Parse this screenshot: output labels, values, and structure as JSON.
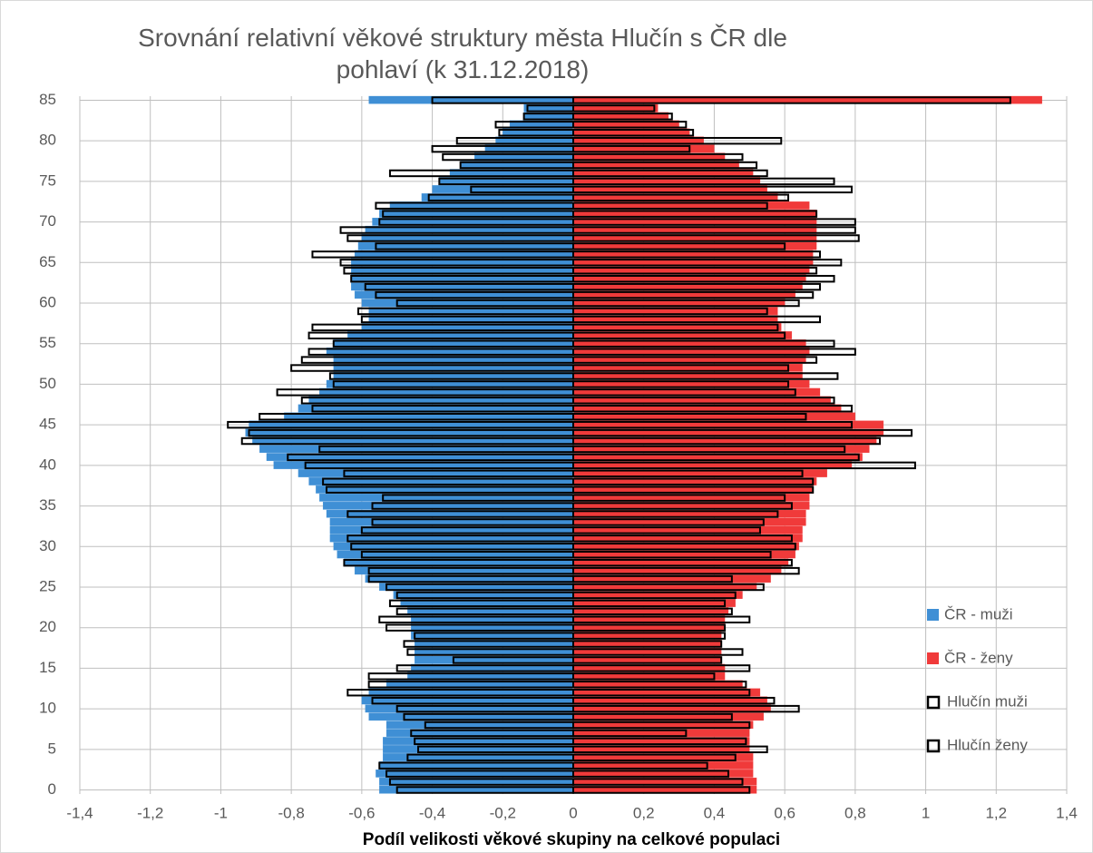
{
  "chart_data": {
    "type": "bar",
    "orientation": "horizontal",
    "title": "Srovnání relativní věkové struktury města Hlučín s ČR dle pohlaví (k 31.12.2018)",
    "xlabel": "Podíl velikosti věkové skupiny na celkové populaci",
    "categories": [
      0,
      null,
      null,
      null,
      null,
      5,
      null,
      null,
      null,
      null,
      10,
      null,
      null,
      null,
      null,
      15,
      null,
      null,
      null,
      null,
      20,
      null,
      null,
      null,
      null,
      25,
      null,
      null,
      null,
      null,
      30,
      null,
      null,
      null,
      null,
      35,
      null,
      null,
      null,
      null,
      40,
      null,
      null,
      null,
      null,
      45,
      null,
      null,
      null,
      null,
      50,
      null,
      null,
      null,
      null,
      55,
      null,
      null,
      null,
      null,
      60,
      null,
      null,
      null,
      null,
      65,
      null,
      null,
      null,
      null,
      70,
      null,
      null,
      null,
      null,
      75,
      null,
      null,
      null,
      null,
      80,
      null,
      null,
      null,
      null,
      85
    ],
    "xlim": [
      -1.4,
      1.4
    ],
    "xticks": [
      {
        "value": -1.4,
        "label": "-1,4"
      },
      {
        "value": -1.2,
        "label": "-1,2"
      },
      -1,
      {
        "value": -0.8,
        "label": "-0,8"
      },
      {
        "value": -0.6,
        "label": "-0,6"
      },
      {
        "value": -0.4,
        "label": "-0,4"
      },
      {
        "value": -0.2,
        "label": "-0,2"
      },
      0,
      {
        "value": 0.2,
        "label": "0,2"
      },
      {
        "value": 0.4,
        "label": "0,4"
      },
      {
        "value": 0.6,
        "label": "0,6"
      },
      {
        "value": 0.8,
        "label": "0,8"
      },
      1,
      {
        "value": 1.2,
        "label": "1,2"
      },
      {
        "value": 1.4,
        "label": "1,4"
      }
    ],
    "grid": true,
    "legend": "right",
    "series": [
      {
        "name": "ČR - muži",
        "color": "#3f8fd5",
        "outline": false,
        "values": [
          -0.55,
          -0.55,
          -0.56,
          -0.55,
          -0.54,
          -0.54,
          -0.54,
          -0.53,
          -0.53,
          -0.58,
          -0.59,
          -0.6,
          -0.58,
          -0.53,
          -0.47,
          -0.46,
          -0.45,
          -0.45,
          -0.45,
          -0.46,
          -0.46,
          -0.46,
          -0.47,
          -0.49,
          -0.51,
          -0.55,
          -0.59,
          -0.62,
          -0.65,
          -0.67,
          -0.68,
          -0.69,
          -0.69,
          -0.69,
          -0.7,
          -0.71,
          -0.72,
          -0.73,
          -0.75,
          -0.78,
          -0.85,
          -0.87,
          -0.89,
          -0.91,
          -0.93,
          -0.92,
          -0.82,
          -0.78,
          -0.75,
          -0.72,
          -0.7,
          -0.68,
          -0.68,
          -0.68,
          -0.7,
          -0.68,
          -0.64,
          -0.6,
          -0.58,
          -0.58,
          -0.6,
          -0.62,
          -0.63,
          -0.63,
          -0.63,
          -0.63,
          -0.62,
          -0.61,
          -0.6,
          -0.59,
          -0.57,
          -0.55,
          -0.52,
          -0.43,
          -0.4,
          -0.38,
          -0.35,
          -0.32,
          -0.28,
          -0.25,
          -0.22,
          -0.2,
          -0.18,
          -0.14,
          -0.14,
          -0.58
        ]
      },
      {
        "name": "ČR - ženy",
        "color": "#f03a3a",
        "outline": false,
        "values": [
          0.52,
          0.52,
          0.51,
          0.51,
          0.51,
          0.5,
          0.5,
          0.5,
          0.51,
          0.54,
          0.56,
          0.55,
          0.53,
          0.48,
          0.43,
          0.43,
          0.42,
          0.42,
          0.42,
          0.42,
          0.43,
          0.43,
          0.44,
          0.46,
          0.48,
          0.52,
          0.56,
          0.59,
          0.61,
          0.63,
          0.64,
          0.65,
          0.65,
          0.66,
          0.66,
          0.67,
          0.67,
          0.68,
          0.69,
          0.72,
          0.79,
          0.82,
          0.84,
          0.86,
          0.88,
          0.88,
          0.8,
          0.76,
          0.73,
          0.7,
          0.67,
          0.65,
          0.65,
          0.66,
          0.67,
          0.66,
          0.62,
          0.59,
          0.58,
          0.58,
          0.6,
          0.63,
          0.65,
          0.66,
          0.67,
          0.68,
          0.68,
          0.69,
          0.69,
          0.69,
          0.69,
          0.69,
          0.67,
          0.58,
          0.55,
          0.53,
          0.51,
          0.47,
          0.43,
          0.4,
          0.37,
          0.33,
          0.3,
          0.27,
          0.24,
          1.33
        ]
      },
      {
        "name": "Hlučín muži",
        "color": "#000000",
        "outline": true,
        "values": [
          -0.5,
          -0.52,
          -0.53,
          -0.55,
          -0.47,
          -0.44,
          -0.45,
          -0.46,
          -0.42,
          -0.48,
          -0.5,
          -0.57,
          -0.64,
          -0.58,
          -0.58,
          -0.5,
          -0.34,
          -0.47,
          -0.48,
          -0.45,
          -0.53,
          -0.55,
          -0.5,
          -0.52,
          -0.5,
          -0.53,
          -0.58,
          -0.58,
          -0.65,
          -0.6,
          -0.63,
          -0.64,
          -0.6,
          -0.57,
          -0.64,
          -0.57,
          -0.54,
          -0.7,
          -0.71,
          -0.65,
          -0.76,
          -0.81,
          -0.72,
          -0.94,
          -0.92,
          -0.98,
          -0.89,
          -0.74,
          -0.77,
          -0.84,
          -0.68,
          -0.69,
          -0.8,
          -0.77,
          -0.75,
          -0.68,
          -0.75,
          -0.74,
          -0.6,
          -0.61,
          -0.5,
          -0.56,
          -0.59,
          -0.63,
          -0.65,
          -0.66,
          -0.74,
          -0.56,
          -0.64,
          -0.66,
          -0.55,
          -0.54,
          -0.56,
          -0.41,
          -0.29,
          -0.38,
          -0.52,
          -0.32,
          -0.37,
          -0.4,
          -0.33,
          -0.21,
          -0.22,
          -0.14,
          -0.13,
          -0.4
        ]
      },
      {
        "name": "Hlučín ženy",
        "color": "#000000",
        "outline": true,
        "values": [
          0.5,
          0.48,
          0.44,
          0.38,
          0.46,
          0.55,
          0.49,
          0.32,
          0.5,
          0.45,
          0.64,
          0.57,
          0.5,
          0.49,
          0.4,
          0.5,
          0.42,
          0.48,
          0.42,
          0.43,
          0.43,
          0.5,
          0.45,
          0.43,
          0.46,
          0.54,
          0.45,
          0.64,
          0.62,
          0.56,
          0.63,
          0.62,
          0.53,
          0.54,
          0.58,
          0.62,
          0.6,
          0.68,
          0.68,
          0.65,
          0.97,
          0.81,
          0.77,
          0.87,
          0.96,
          0.79,
          0.66,
          0.79,
          0.74,
          0.63,
          0.61,
          0.75,
          0.61,
          0.69,
          0.8,
          0.74,
          0.6,
          0.58,
          0.7,
          0.55,
          0.64,
          0.68,
          0.7,
          0.74,
          0.69,
          0.76,
          0.7,
          0.6,
          0.81,
          0.8,
          0.8,
          0.69,
          0.55,
          0.61,
          0.79,
          0.74,
          0.55,
          0.52,
          0.48,
          0.33,
          0.59,
          0.34,
          0.32,
          0.28,
          0.23,
          1.24
        ]
      }
    ]
  }
}
